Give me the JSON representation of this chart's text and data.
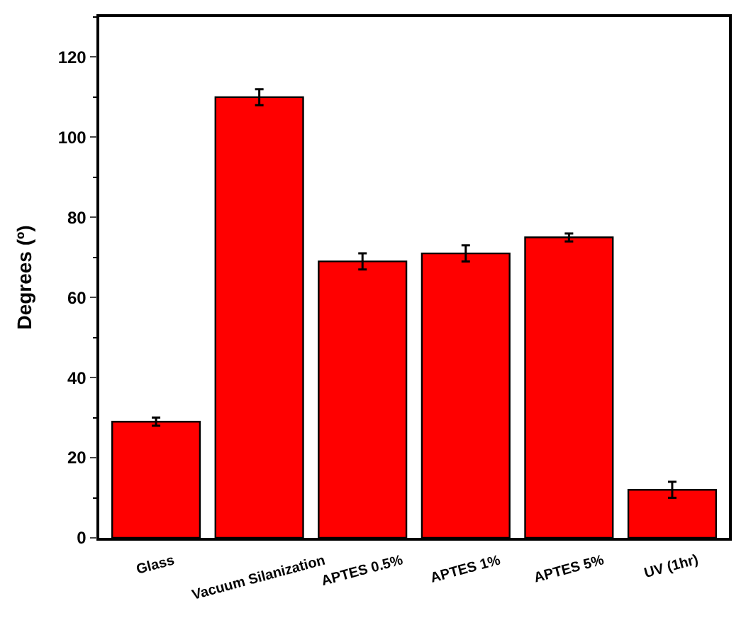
{
  "chart_data": {
    "type": "bar",
    "ylabel": "Degrees (º)",
    "categories": [
      "Glass",
      "Vacuum Silanization",
      "APTES 0.5%",
      "APTES 1%",
      "APTES 5%",
      "UV (1hr)"
    ],
    "values": [
      29,
      110,
      69,
      71,
      75,
      12
    ],
    "errors": [
      1,
      2,
      2,
      2,
      1,
      2
    ],
    "color": "#ff0000",
    "ylim": [
      0,
      130
    ],
    "yticks": [
      0,
      20,
      40,
      60,
      80,
      100,
      120
    ]
  }
}
